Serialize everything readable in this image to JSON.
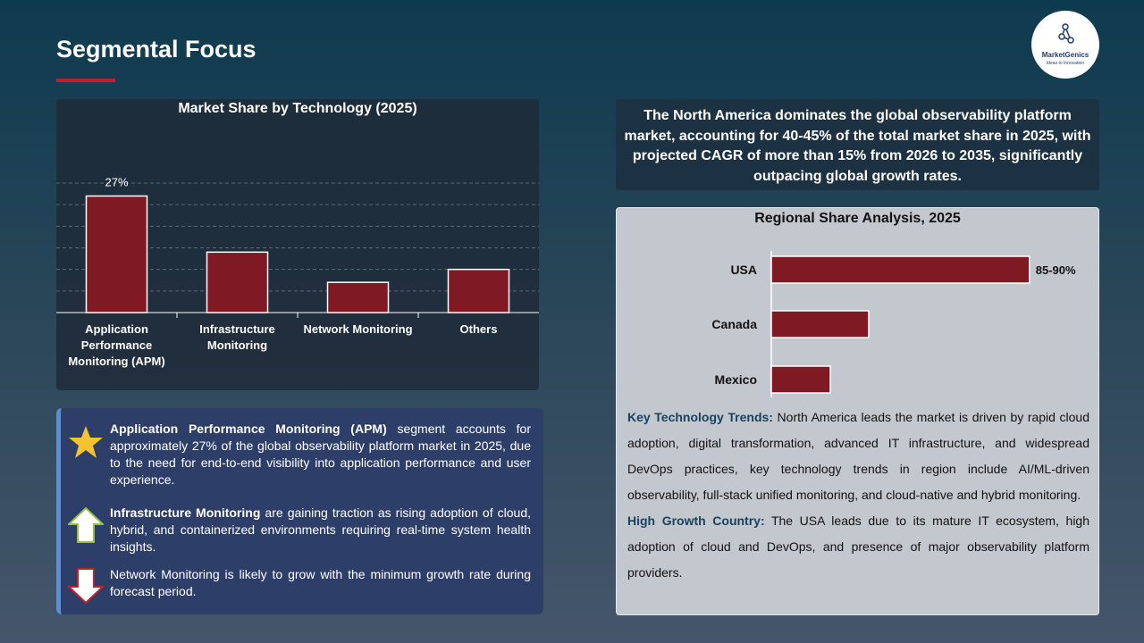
{
  "header": {
    "title": "Segmental Focus"
  },
  "logo": {
    "name": "MarketGenics",
    "tagline": "Ideas to Innovation"
  },
  "chart_data": [
    {
      "type": "bar",
      "title": "Market Share by Technology (2025)",
      "categories": [
        "Application Performance Monitoring (APM)",
        "Infrastructure Monitoring",
        "Network Monitoring",
        "Others"
      ],
      "values": [
        27,
        14,
        7,
        10
      ],
      "value_labels": [
        "27%",
        null,
        null,
        null
      ],
      "color": "#7f1a24",
      "ylim": [
        0,
        30
      ],
      "yticks": [
        5,
        10,
        15,
        20,
        25,
        30
      ],
      "grid": true
    },
    {
      "type": "bar",
      "orientation": "horizontal",
      "title": "Regional Share Analysis, 2025",
      "categories": [
        "USA",
        "Canada",
        "Mexico"
      ],
      "values": [
        87.5,
        33,
        20
      ],
      "value_labels": [
        "85-90%",
        null,
        null
      ],
      "color": "#7f1a24",
      "xlim": [
        0,
        100
      ],
      "grid": false
    }
  ],
  "bullets": [
    {
      "bold": "Application Performance Monitoring (APM)",
      "text": " segment accounts for approximately 27% of the global observability platform market in 2025, due to the need for end-to-end visibility into application performance and user experience."
    },
    {
      "bold": "Infrastructure Monitoring",
      "text": " are gaining traction as rising adoption of cloud, hybrid, and containerized environments requiring real-time system health insights."
    },
    {
      "text": "Network Monitoring is likely to grow with the minimum growth rate during forecast period."
    }
  ],
  "summary": "The North America dominates the global observability platform market, accounting for 40-45% of the total market share in 2025, with projected CAGR of more than 15% from 2026 to 2035, significantly outpacing global growth rates.",
  "notes": [
    {
      "label": "Key Technology Trends:",
      "text": " North America leads the market is driven by rapid cloud adoption, digital transformation, advanced IT infrastructure, and widespread DevOps practices, key technology trends in region include AI/ML-driven observability, full-stack unified monitoring, and cloud-native and hybrid monitoring."
    },
    {
      "label": "High Growth Country:",
      "text": " The USA leads due to its mature IT ecosystem, high adoption of cloud and DevOps, and presence of major observability platform providers."
    }
  ]
}
